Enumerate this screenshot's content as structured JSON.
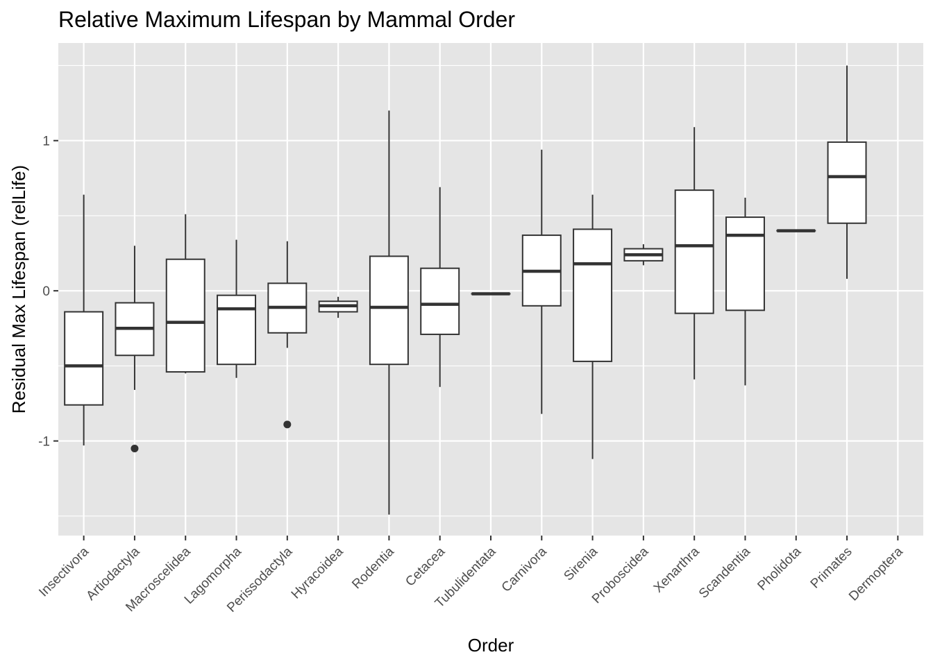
{
  "chart_data": {
    "type": "boxplot",
    "title": "Relative Maximum Lifespan by Mammal Order",
    "xlabel": "Order",
    "ylabel": "Residual Max Lifespan (relLife)",
    "ylim": [
      -1.63,
      1.65
    ],
    "yticks": [
      -1,
      0,
      1
    ],
    "ytick_labels": [
      "-1",
      "0",
      "1"
    ],
    "grid": true,
    "legend": "none",
    "colors": {
      "panel": "#e5e5e5",
      "grid": "#ffffff",
      "box_fill": "#ffffff",
      "box_line": "#333333",
      "text": "#4d4d4d"
    },
    "categories": [
      "Insectivora",
      "Artiodactyla",
      "Macroscelidea",
      "Lagomorpha",
      "Perissodactyla",
      "Hyracoidea",
      "Rodentia",
      "Cetacea",
      "Tubulidentata",
      "Carnivora",
      "Sirenia",
      "Proboscidea",
      "Xenarthra",
      "Scandentia",
      "Pholidota",
      "Primates",
      "Dermoptera"
    ],
    "boxes": [
      {
        "order": "Insectivora",
        "lower": -1.03,
        "q1": -0.76,
        "median": -0.5,
        "q3": -0.14,
        "upper": 0.64,
        "outliers": []
      },
      {
        "order": "Artiodactyla",
        "lower": -0.66,
        "q1": -0.43,
        "median": -0.25,
        "q3": -0.08,
        "upper": 0.3,
        "outliers": [
          -1.05
        ]
      },
      {
        "order": "Macroscelidea",
        "lower": -0.55,
        "q1": -0.54,
        "median": -0.21,
        "q3": 0.21,
        "upper": 0.51,
        "outliers": []
      },
      {
        "order": "Lagomorpha",
        "lower": -0.58,
        "q1": -0.49,
        "median": -0.12,
        "q3": -0.03,
        "upper": 0.34,
        "outliers": []
      },
      {
        "order": "Perissodactyla",
        "lower": -0.38,
        "q1": -0.28,
        "median": -0.11,
        "q3": 0.05,
        "upper": 0.33,
        "outliers": [
          -0.89
        ]
      },
      {
        "order": "Hyracoidea",
        "lower": -0.18,
        "q1": -0.14,
        "median": -0.1,
        "q3": -0.07,
        "upper": -0.04,
        "outliers": []
      },
      {
        "order": "Rodentia",
        "lower": -1.49,
        "q1": -0.49,
        "median": -0.11,
        "q3": 0.23,
        "upper": 1.2,
        "outliers": []
      },
      {
        "order": "Cetacea",
        "lower": -0.64,
        "q1": -0.29,
        "median": -0.09,
        "q3": 0.15,
        "upper": 0.69,
        "outliers": []
      },
      {
        "order": "Tubulidentata",
        "lower": -0.02,
        "q1": -0.02,
        "median": -0.02,
        "q3": -0.02,
        "upper": -0.02,
        "outliers": []
      },
      {
        "order": "Carnivora",
        "lower": -0.82,
        "q1": -0.1,
        "median": 0.13,
        "q3": 0.37,
        "upper": 0.94,
        "outliers": []
      },
      {
        "order": "Sirenia",
        "lower": -1.12,
        "q1": -0.47,
        "median": 0.18,
        "q3": 0.41,
        "upper": 0.64,
        "outliers": []
      },
      {
        "order": "Proboscidea",
        "lower": 0.17,
        "q1": 0.2,
        "median": 0.24,
        "q3": 0.28,
        "upper": 0.31,
        "outliers": []
      },
      {
        "order": "Xenarthra",
        "lower": -0.59,
        "q1": -0.15,
        "median": 0.3,
        "q3": 0.67,
        "upper": 1.09,
        "outliers": []
      },
      {
        "order": "Scandentia",
        "lower": -0.63,
        "q1": -0.13,
        "median": 0.37,
        "q3": 0.49,
        "upper": 0.62,
        "outliers": []
      },
      {
        "order": "Pholidota",
        "lower": 0.4,
        "q1": 0.4,
        "median": 0.4,
        "q3": 0.4,
        "upper": 0.4,
        "outliers": []
      },
      {
        "order": "Primates",
        "lower": 0.08,
        "q1": 0.45,
        "median": 0.76,
        "q3": 0.99,
        "upper": 1.5,
        "outliers": []
      },
      {
        "order": "Dermoptera",
        "lower": null,
        "q1": null,
        "median": null,
        "q3": null,
        "upper": null,
        "outliers": []
      }
    ]
  }
}
